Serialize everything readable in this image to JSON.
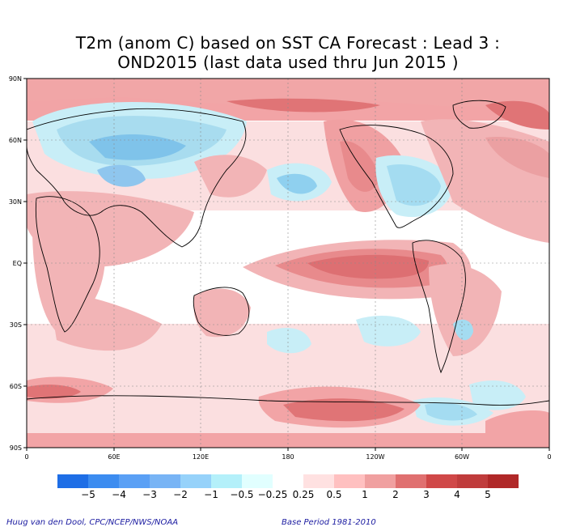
{
  "title": {
    "line1": "T2m (anom C) based on SST CA Forecast : Lead 3 :",
    "line2": "OND2015 (last data used thru Jun 2015 )"
  },
  "map": {
    "lat_labels": [
      "90N",
      "60N",
      "30N",
      "EQ",
      "30S",
      "60S",
      "90S"
    ],
    "lon_labels": [
      "0",
      "60E",
      "120E",
      "180",
      "120W",
      "60W",
      "0"
    ]
  },
  "legend": {
    "labels": [
      "−5",
      "−4",
      "−3",
      "−2",
      "−1",
      "−0.5",
      "−0.25",
      "0.25",
      "0.5",
      "1",
      "2",
      "3",
      "4",
      "5"
    ],
    "colors": [
      "#1e6ee6",
      "#3c8cf0",
      "#5aa0f5",
      "#78b4f5",
      "#96d2fa",
      "#b4f0fa",
      "#e1ffff",
      "#ffffff",
      "#ffe1e1",
      "#ffc0c0",
      "#f0a0a0",
      "#e07070",
      "#d04848",
      "#c03c3c",
      "#b02828"
    ]
  },
  "footer": {
    "credit": "Huug van den Dool, CPC/NCEP/NWS/NOAA",
    "base_period": "Base Period 1981-2010"
  }
}
